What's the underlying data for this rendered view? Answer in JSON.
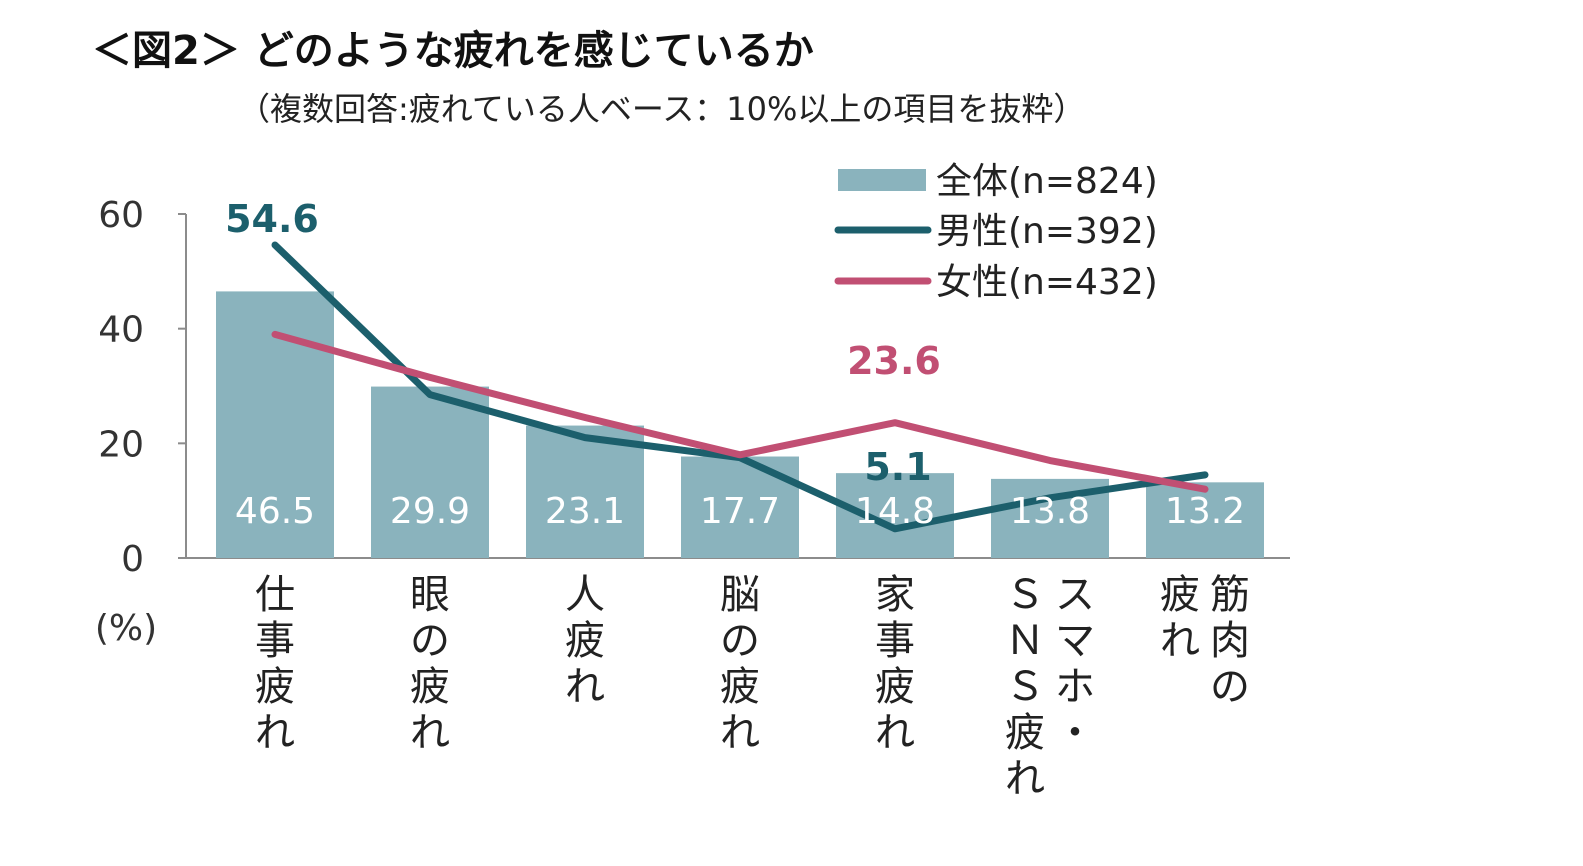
{
  "title": "＜図2＞ どのような疲れを感じているか",
  "subtitle": "（複数回答:疲れている人ベース：10%以上の項目を抜粋）",
  "colors": {
    "bar": "#8ab3bd",
    "male": "#1c5f6c",
    "female": "#c14f73"
  },
  "chart_data": {
    "type": "bar",
    "categories": [
      "仕事疲れ",
      "眼の疲れ",
      "人疲れ",
      "脳の疲れ",
      "家事疲れ",
      "スマホ・ＳＮＳ疲れ",
      "筋肉の疲れ"
    ],
    "category_lines": [
      [
        "仕事疲れ"
      ],
      [
        "眼の疲れ"
      ],
      [
        "人疲れ"
      ],
      [
        "脳の疲れ"
      ],
      [
        "家事疲れ"
      ],
      [
        "スマホ・",
        "ＳＮＳ疲れ"
      ],
      [
        "筋肉の",
        "疲れ"
      ]
    ],
    "series": [
      {
        "name": "全体(n=824)",
        "type": "bar",
        "values": [
          46.5,
          29.9,
          23.1,
          17.7,
          14.8,
          13.8,
          13.2
        ],
        "value_labels": [
          "46.5",
          "29.9",
          "23.1",
          "17.7",
          "14.8",
          "13.8",
          "13.2"
        ]
      },
      {
        "name": "男性(n=392)",
        "type": "line",
        "values": [
          54.6,
          28.5,
          21.0,
          17.5,
          5.1,
          10.5,
          14.5
        ]
      },
      {
        "name": "女性(n=432)",
        "type": "line",
        "values": [
          39.0,
          31.5,
          24.5,
          18.0,
          23.6,
          17.0,
          12.0
        ]
      }
    ],
    "annotations": [
      {
        "text": "54.6",
        "series": "男性(n=392)",
        "category": "仕事疲れ"
      },
      {
        "text": "5.1",
        "series": "男性(n=392)",
        "category": "家事疲れ"
      },
      {
        "text": "23.6",
        "series": "女性(n=432)",
        "category": "家事疲れ"
      }
    ],
    "yticks": [
      "0",
      "20",
      "40",
      "60"
    ],
    "ylim": [
      0,
      60
    ],
    "ylabel": "(%)",
    "grid": false,
    "legend_position": "top-right"
  }
}
